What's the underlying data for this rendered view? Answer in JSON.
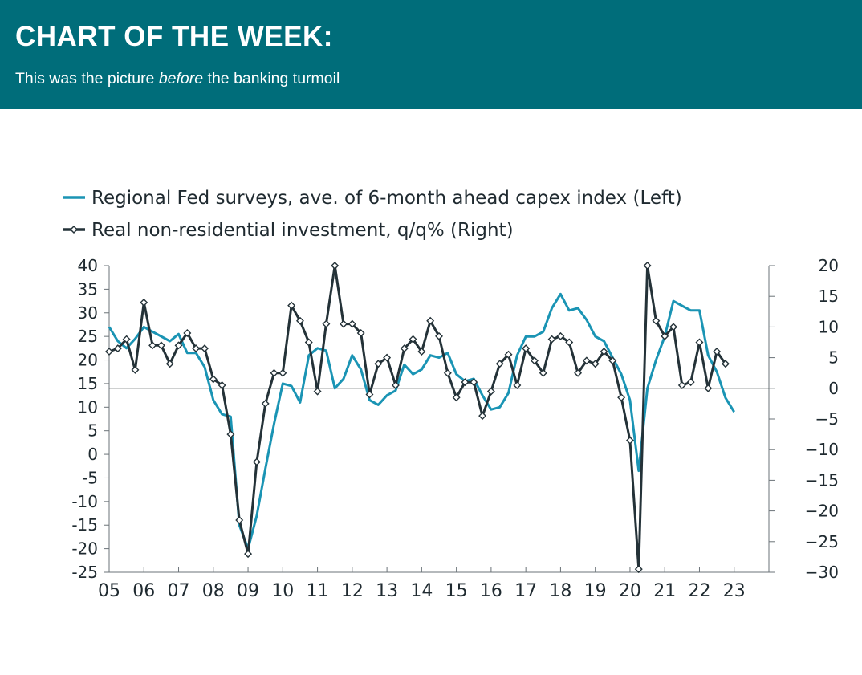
{
  "header": {
    "title": "CHART OF THE WEEK:",
    "subtitle_before": "This was the picture ",
    "subtitle_em": "before",
    "subtitle_after": " the banking turmoil"
  },
  "chart_data": {
    "type": "line",
    "x_ticks": [
      "05",
      "06",
      "07",
      "08",
      "09",
      "10",
      "11",
      "12",
      "13",
      "14",
      "15",
      "16",
      "17",
      "18",
      "19",
      "20",
      "21",
      "22",
      "23"
    ],
    "y_left": {
      "lim": [
        -25,
        40
      ],
      "ticks": [
        40,
        35,
        30,
        25,
        20,
        15,
        10,
        5,
        0,
        -5,
        -10,
        -15,
        -20,
        -25
      ]
    },
    "y_right": {
      "lim": [
        -30,
        20
      ],
      "ticks": [
        20,
        15,
        10,
        5,
        0,
        -5,
        -10,
        -15,
        -20,
        -25,
        -30
      ]
    },
    "zero_line": "right-axis 0",
    "colors": {
      "capex": "#1a94b4",
      "investment": "#243238"
    },
    "legend_placement": "top-left",
    "series": [
      {
        "name": "Regional Fed surveys, ave. of 6-month ahead capex index (Left)",
        "axis": "left",
        "x": [
          2005.0,
          2005.25,
          2005.5,
          2005.75,
          2006.0,
          2006.25,
          2006.5,
          2006.75,
          2007.0,
          2007.25,
          2007.5,
          2007.75,
          2008.0,
          2008.25,
          2008.5,
          2008.75,
          2009.0,
          2009.25,
          2009.5,
          2009.75,
          2010.0,
          2010.25,
          2010.5,
          2010.75,
          2011.0,
          2011.25,
          2011.5,
          2011.75,
          2012.0,
          2012.25,
          2012.5,
          2012.75,
          2013.0,
          2013.25,
          2013.5,
          2013.75,
          2014.0,
          2014.25,
          2014.5,
          2014.75,
          2015.0,
          2015.25,
          2015.5,
          2015.75,
          2016.0,
          2016.25,
          2016.5,
          2016.75,
          2017.0,
          2017.25,
          2017.5,
          2017.75,
          2018.0,
          2018.25,
          2018.5,
          2018.75,
          2019.0,
          2019.25,
          2019.5,
          2019.75,
          2020.0,
          2020.25,
          2020.5,
          2020.75,
          2021.0,
          2021.25,
          2021.5,
          2021.75,
          2022.0,
          2022.25,
          2022.5,
          2022.75,
          2023.0
        ],
        "values": [
          27,
          24,
          22.5,
          24.5,
          27,
          26,
          25,
          24,
          25.5,
          21.5,
          21.5,
          18.5,
          11.5,
          8.5,
          8,
          -15,
          -20,
          -13,
          -3,
          6.5,
          15,
          14.5,
          11,
          21,
          22.5,
          22,
          14,
          16,
          21,
          18,
          11.5,
          10.5,
          12.5,
          13.5,
          19,
          17,
          18,
          21,
          20.5,
          21.5,
          17,
          15.5,
          16,
          12.5,
          9.5,
          10,
          13,
          21,
          25,
          25,
          26,
          31,
          34,
          30.5,
          31,
          28.5,
          25,
          24,
          20.5,
          17,
          11.5,
          -3.5,
          14,
          20,
          25,
          32.5,
          31.5,
          30.5,
          30.5,
          21,
          17.5,
          12,
          9
        ]
      },
      {
        "name": "Real non-residential investment, q/q% (Right)",
        "axis": "right",
        "x": [
          2005.0,
          2005.25,
          2005.5,
          2005.75,
          2006.0,
          2006.25,
          2006.5,
          2006.75,
          2007.0,
          2007.25,
          2007.5,
          2007.75,
          2008.0,
          2008.25,
          2008.5,
          2008.75,
          2009.0,
          2009.25,
          2009.5,
          2009.75,
          2010.0,
          2010.25,
          2010.5,
          2010.75,
          2011.0,
          2011.25,
          2011.5,
          2011.75,
          2012.0,
          2012.25,
          2012.5,
          2012.75,
          2013.0,
          2013.25,
          2013.5,
          2013.75,
          2014.0,
          2014.25,
          2014.5,
          2014.75,
          2015.0,
          2015.25,
          2015.5,
          2015.75,
          2016.0,
          2016.25,
          2016.5,
          2016.75,
          2017.0,
          2017.25,
          2017.5,
          2017.75,
          2018.0,
          2018.25,
          2018.5,
          2018.75,
          2019.0,
          2019.25,
          2019.5,
          2019.75,
          2020.0,
          2020.25,
          2020.5,
          2020.75,
          2021.0,
          2021.25,
          2021.5,
          2021.75,
          2022.0,
          2022.25,
          2022.5,
          2022.75
        ],
        "values": [
          6,
          6.5,
          8,
          3,
          14,
          7,
          7,
          4,
          7,
          9,
          6.5,
          6.5,
          1.5,
          0.5,
          -7.5,
          -21.5,
          -27,
          -12,
          -2.5,
          2.5,
          2.5,
          13.5,
          11,
          7.5,
          -0.5,
          10.5,
          20,
          10.5,
          10.5,
          9,
          -1,
          4,
          5,
          0.5,
          6.5,
          8,
          6,
          11,
          8.5,
          2.5,
          -1.5,
          1,
          1,
          -4.5,
          -0.5,
          4,
          5.5,
          0.5,
          6.5,
          4.5,
          2.5,
          8,
          8.5,
          7.5,
          2.5,
          4.5,
          4,
          6,
          4.5,
          -1.5,
          -8.5,
          -29.5,
          20,
          11,
          8.5,
          10,
          0.5,
          1,
          7.5,
          0,
          6,
          4
        ]
      }
    ]
  }
}
